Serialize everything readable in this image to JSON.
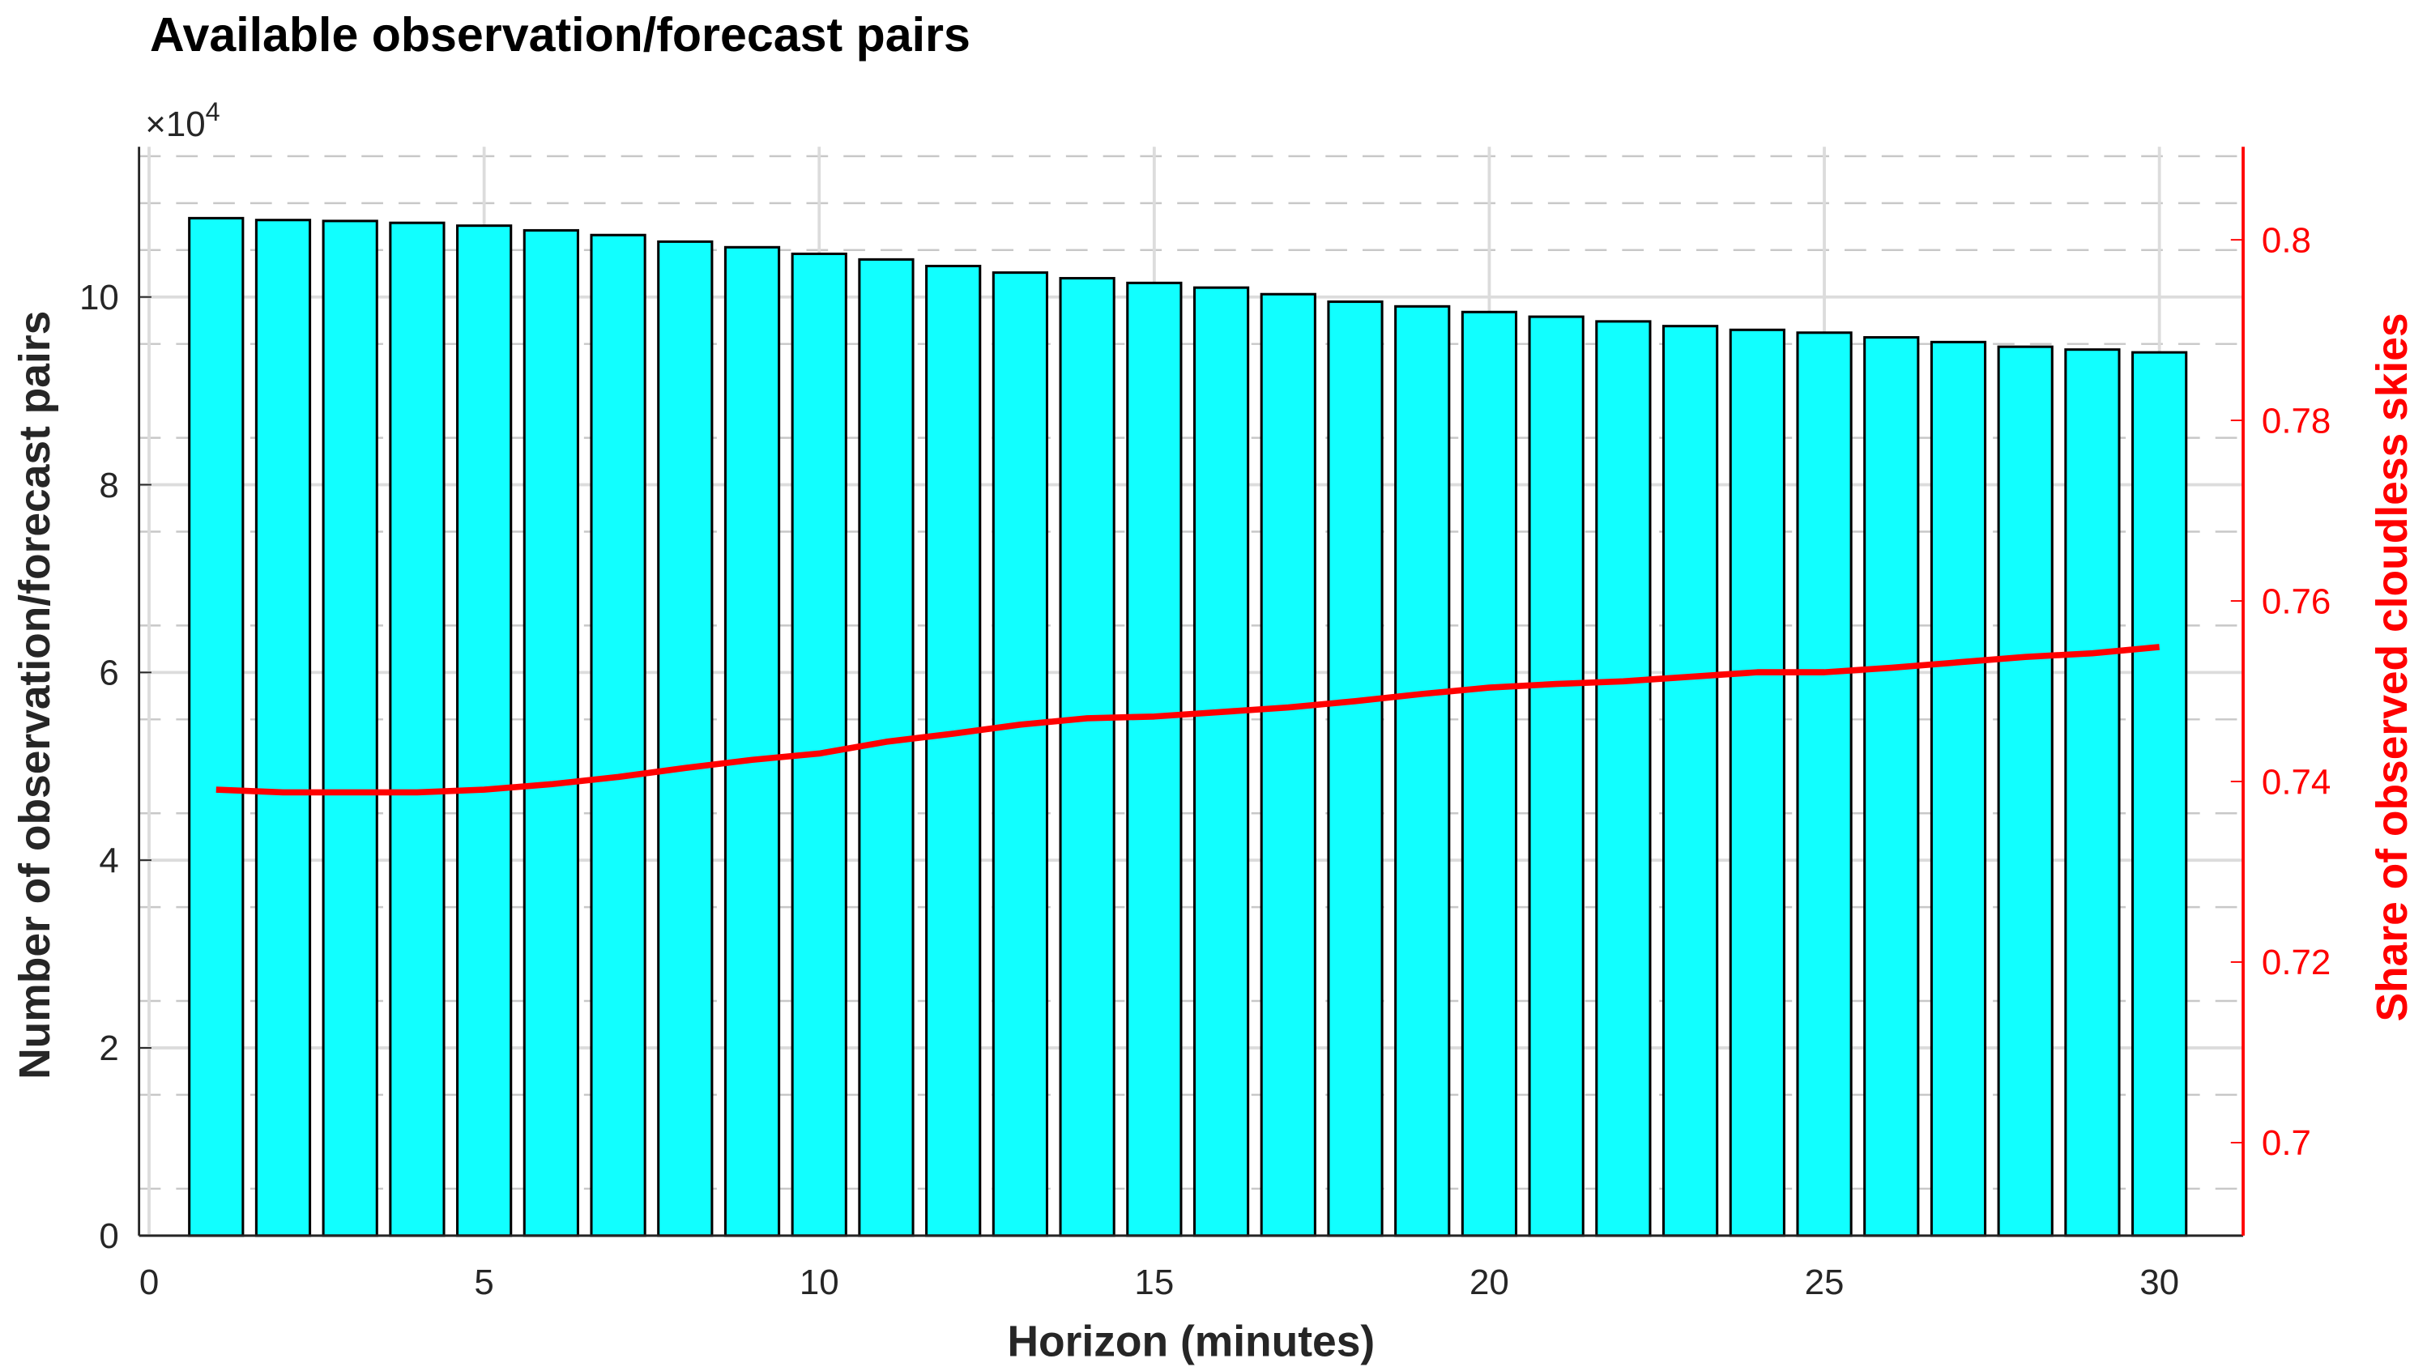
{
  "chart_data": {
    "type": "bar",
    "title": "Available observation/forecast pairs",
    "xlabel": "Horizon (minutes)",
    "ylabel": "Number of observation/forecast pairs",
    "ylabel_right": "Share of observed cloudless skies",
    "y_exponent_label": "×10",
    "y_exponent": "4",
    "xlim": [
      -0.15,
      31.25
    ],
    "ylim": [
      0,
      11.6
    ],
    "ylim_right": [
      0.6897,
      0.8103
    ],
    "xticks": [
      "0",
      "5",
      "10",
      "15",
      "20",
      "25",
      "30"
    ],
    "yticks": [
      "0",
      "2",
      "4",
      "6",
      "8",
      "10"
    ],
    "yticks_right": [
      "0.7",
      "0.72",
      "0.74",
      "0.76",
      "0.78",
      "0.8"
    ],
    "grid": true,
    "x": [
      1,
      2,
      3,
      4,
      5,
      6,
      7,
      8,
      9,
      10,
      11,
      12,
      13,
      14,
      15,
      16,
      17,
      18,
      19,
      20,
      21,
      22,
      23,
      24,
      25,
      26,
      27,
      28,
      29,
      30
    ],
    "series": [
      {
        "type": "bar",
        "axis": "left",
        "color": "#11ffff",
        "values": [
          10.84,
          10.82,
          10.81,
          10.79,
          10.76,
          10.71,
          10.66,
          10.59,
          10.53,
          10.46,
          10.4,
          10.33,
          10.26,
          10.2,
          10.15,
          10.1,
          10.03,
          9.95,
          9.9,
          9.84,
          9.79,
          9.74,
          9.69,
          9.65,
          9.62,
          9.57,
          9.52,
          9.47,
          9.44,
          9.41
        ]
      },
      {
        "type": "line",
        "axis": "right",
        "color": "#ff0000",
        "values": [
          0.7391,
          0.7388,
          0.7388,
          0.7388,
          0.7391,
          0.7397,
          0.7405,
          0.7415,
          0.7424,
          0.7431,
          0.7444,
          0.7453,
          0.7463,
          0.747,
          0.7472,
          0.7477,
          0.7482,
          0.7489,
          0.7497,
          0.7504,
          0.7508,
          0.7511,
          0.7516,
          0.7521,
          0.7521,
          0.7526,
          0.7532,
          0.7538,
          0.7542,
          0.7549
        ]
      }
    ]
  }
}
